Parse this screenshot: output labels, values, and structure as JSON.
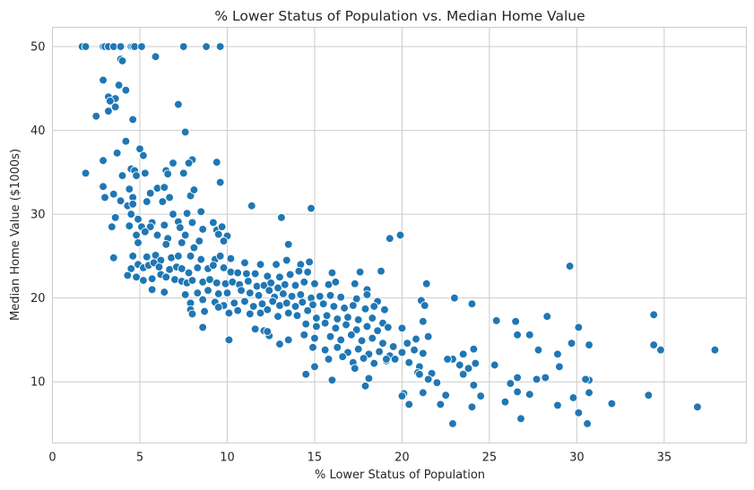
{
  "chart_data": {
    "type": "scatter",
    "title": "% Lower Status of Population vs. Median Home Value",
    "xlabel": "% Lower Status of Population",
    "ylabel": "Median Home Value ($1000s)",
    "xlim": [
      0,
      39.7
    ],
    "ylim": [
      2.7,
      52.3
    ],
    "xticks": [
      0,
      5,
      10,
      15,
      20,
      25,
      30,
      35
    ],
    "yticks": [
      10,
      20,
      30,
      40,
      50
    ],
    "grid": true,
    "marker_color": "#1f77b4",
    "points": [
      [
        1.7,
        50
      ],
      [
        1.9,
        50
      ],
      [
        2.9,
        50
      ],
      [
        3.0,
        50
      ],
      [
        3.2,
        50
      ],
      [
        3.5,
        50
      ],
      [
        3.9,
        50
      ],
      [
        4.5,
        50
      ],
      [
        4.6,
        50
      ],
      [
        4.7,
        50
      ],
      [
        5.1,
        50
      ],
      [
        7.5,
        50
      ],
      [
        8.8,
        50
      ],
      [
        9.6,
        50
      ],
      [
        3.9,
        48.5
      ],
      [
        4.0,
        48.3
      ],
      [
        5.9,
        48.8
      ],
      [
        3.8,
        45.4
      ],
      [
        4.2,
        44.8
      ],
      [
        3.2,
        44.0
      ],
      [
        3.6,
        43.8
      ],
      [
        3.3,
        43.5
      ],
      [
        3.6,
        42.8
      ],
      [
        3.2,
        42.3
      ],
      [
        2.5,
        41.7
      ],
      [
        4.6,
        41.3
      ],
      [
        7.2,
        43.1
      ],
      [
        7.6,
        39.8
      ],
      [
        2.9,
        46.0
      ],
      [
        4.2,
        38.7
      ],
      [
        5.0,
        37.8
      ],
      [
        3.7,
        37.3
      ],
      [
        5.2,
        37.0
      ],
      [
        2.9,
        36.4
      ],
      [
        8.0,
        36.5
      ],
      [
        7.8,
        36.1
      ],
      [
        9.4,
        36.2
      ],
      [
        6.9,
        36.1
      ],
      [
        1.9,
        34.9
      ],
      [
        4.5,
        35.4
      ],
      [
        4.7,
        35.2
      ],
      [
        4.8,
        34.6
      ],
      [
        5.3,
        34.9
      ],
      [
        6.5,
        35.2
      ],
      [
        6.6,
        34.8
      ],
      [
        4.0,
        34.6
      ],
      [
        7.5,
        34.9
      ],
      [
        9.6,
        33.8
      ],
      [
        2.9,
        33.3
      ],
      [
        4.4,
        33.0
      ],
      [
        5.6,
        32.5
      ],
      [
        6.0,
        33.1
      ],
      [
        6.4,
        33.2
      ],
      [
        3.5,
        32.4
      ],
      [
        3.0,
        32.0
      ],
      [
        4.6,
        32.0
      ],
      [
        6.7,
        32.0
      ],
      [
        7.9,
        32.2
      ],
      [
        8.1,
        32.9
      ],
      [
        3.9,
        31.6
      ],
      [
        4.3,
        31.0
      ],
      [
        4.6,
        31.2
      ],
      [
        5.4,
        31.5
      ],
      [
        6.3,
        31.5
      ],
      [
        8.5,
        30.3
      ],
      [
        11.4,
        31.0
      ],
      [
        13.1,
        29.6
      ],
      [
        14.8,
        30.7
      ],
      [
        4.5,
        30.0
      ],
      [
        4.9,
        29.4
      ],
      [
        5.7,
        29.0
      ],
      [
        6.9,
        30.0
      ],
      [
        7.2,
        29.1
      ],
      [
        7.7,
        30.1
      ],
      [
        8.0,
        29.0
      ],
      [
        9.2,
        29.0
      ],
      [
        3.4,
        28.5
      ],
      [
        4.4,
        28.6
      ],
      [
        5.1,
        28.5
      ],
      [
        5.6,
        28.5
      ],
      [
        6.4,
        28.7
      ],
      [
        7.3,
        28.4
      ],
      [
        8.6,
        28.2
      ],
      [
        9.4,
        28.1
      ],
      [
        9.7,
        28.5
      ],
      [
        3.6,
        29.6
      ],
      [
        4.8,
        27.5
      ],
      [
        5.3,
        27.9
      ],
      [
        6.0,
        27.5
      ],
      [
        6.6,
        27.1
      ],
      [
        7.6,
        27.5
      ],
      [
        8.4,
        26.8
      ],
      [
        9.5,
        27.6
      ],
      [
        10.0,
        27.4
      ],
      [
        4.9,
        26.6
      ],
      [
        6.5,
        26.4
      ],
      [
        7.4,
        26.6
      ],
      [
        8.1,
        26.0
      ],
      [
        9.8,
        26.8
      ],
      [
        13.5,
        26.4
      ],
      [
        19.3,
        27.1
      ],
      [
        19.9,
        27.5
      ],
      [
        3.5,
        24.8
      ],
      [
        4.6,
        25.0
      ],
      [
        5.4,
        24.9
      ],
      [
        5.9,
        25.1
      ],
      [
        6.2,
        24.5
      ],
      [
        6.8,
        24.8
      ],
      [
        7.2,
        25.0
      ],
      [
        7.9,
        25.0
      ],
      [
        8.5,
        24.6
      ],
      [
        9.3,
        24.6
      ],
      [
        9.6,
        25.0
      ],
      [
        10.2,
        24.7
      ],
      [
        11.0,
        24.2
      ],
      [
        11.9,
        24.0
      ],
      [
        12.8,
        24.0
      ],
      [
        13.4,
        24.5
      ],
      [
        14.2,
        24.0
      ],
      [
        14.7,
        24.3
      ],
      [
        4.5,
        23.5
      ],
      [
        4.9,
        24.0
      ],
      [
        5.2,
        23.6
      ],
      [
        5.5,
        23.9
      ],
      [
        5.8,
        24.2
      ],
      [
        6.1,
        23.7
      ],
      [
        6.7,
        23.4
      ],
      [
        7.1,
        23.7
      ],
      [
        7.4,
        23.5
      ],
      [
        7.8,
        23.0
      ],
      [
        8.3,
        23.6
      ],
      [
        8.9,
        23.5
      ],
      [
        9.2,
        23.9
      ],
      [
        9.8,
        23.6
      ],
      [
        10.2,
        23.1
      ],
      [
        10.6,
        23.0
      ],
      [
        11.1,
        22.9
      ],
      [
        11.6,
        22.9
      ],
      [
        12.3,
        22.6
      ],
      [
        13.0,
        22.5
      ],
      [
        13.6,
        22.8
      ],
      [
        14.1,
        23.2
      ],
      [
        14.6,
        23.1
      ],
      [
        16.0,
        23.0
      ],
      [
        17.6,
        23.1
      ],
      [
        18.8,
        23.2
      ],
      [
        4.3,
        22.7
      ],
      [
        4.8,
        22.5
      ],
      [
        5.2,
        22.1
      ],
      [
        5.7,
        22.3
      ],
      [
        6.2,
        22.8
      ],
      [
        6.5,
        22.5
      ],
      [
        7.0,
        22.2
      ],
      [
        7.4,
        22.0
      ],
      [
        7.7,
        21.8
      ],
      [
        8.0,
        22.1
      ],
      [
        8.6,
        21.9
      ],
      [
        9.0,
        22.2
      ],
      [
        9.4,
        21.8
      ],
      [
        9.9,
        21.7
      ],
      [
        10.3,
        21.9
      ],
      [
        10.7,
        21.6
      ],
      [
        11.2,
        22.0
      ],
      [
        11.7,
        21.4
      ],
      [
        12.1,
        21.5
      ],
      [
        12.5,
        21.8
      ],
      [
        12.9,
        21.2
      ],
      [
        13.3,
        21.6
      ],
      [
        13.9,
        21.5
      ],
      [
        14.4,
        21.9
      ],
      [
        15.0,
        21.7
      ],
      [
        15.8,
        21.6
      ],
      [
        16.2,
        21.9
      ],
      [
        17.3,
        21.7
      ],
      [
        18.0,
        21.0
      ],
      [
        21.4,
        21.7
      ],
      [
        5.7,
        21.0
      ],
      [
        6.4,
        20.7
      ],
      [
        7.6,
        20.4
      ],
      [
        8.3,
        20.6
      ],
      [
        8.9,
        20.9
      ],
      [
        9.5,
        20.5
      ],
      [
        10.0,
        20.6
      ],
      [
        10.8,
        20.9
      ],
      [
        11.3,
        20.6
      ],
      [
        11.8,
        20.3
      ],
      [
        12.4,
        20.9
      ],
      [
        12.7,
        20.1
      ],
      [
        13.2,
        20.5
      ],
      [
        13.7,
        20.2
      ],
      [
        14.2,
        20.4
      ],
      [
        14.8,
        20.0
      ],
      [
        15.3,
        20.2
      ],
      [
        15.9,
        20.3
      ],
      [
        16.5,
        20.1
      ],
      [
        17.4,
        19.9
      ],
      [
        18.0,
        20.4
      ],
      [
        18.6,
        19.6
      ],
      [
        21.1,
        19.7
      ],
      [
        23.0,
        20.0
      ],
      [
        7.9,
        19.4
      ],
      [
        8.6,
        19.8
      ],
      [
        9.3,
        19.5
      ],
      [
        9.8,
        19.1
      ],
      [
        10.4,
        19.4
      ],
      [
        11.0,
        19.6
      ],
      [
        11.5,
        19.0
      ],
      [
        12.0,
        19.3
      ],
      [
        12.6,
        19.6
      ],
      [
        13.0,
        19.1
      ],
      [
        13.4,
        19.4
      ],
      [
        13.9,
        19.0
      ],
      [
        14.3,
        19.5
      ],
      [
        14.9,
        19.2
      ],
      [
        15.5,
        19.3
      ],
      [
        16.1,
        19.0
      ],
      [
        16.7,
        18.8
      ],
      [
        17.2,
        19.1
      ],
      [
        17.9,
        18.7
      ],
      [
        18.4,
        19.0
      ],
      [
        19.0,
        18.6
      ],
      [
        21.3,
        19.1
      ],
      [
        24.0,
        19.3
      ],
      [
        7.9,
        18.6
      ],
      [
        8.7,
        18.4
      ],
      [
        9.5,
        18.9
      ],
      [
        10.1,
        18.2
      ],
      [
        10.6,
        18.5
      ],
      [
        11.3,
        18.1
      ],
      [
        11.9,
        18.2
      ],
      [
        12.3,
        18.6
      ],
      [
        12.9,
        17.8
      ],
      [
        13.5,
        18.2
      ],
      [
        14.0,
        17.9
      ],
      [
        14.6,
        18.5
      ],
      [
        15.1,
        17.6
      ],
      [
        15.7,
        17.9
      ],
      [
        16.3,
        17.5
      ],
      [
        16.9,
        17.7
      ],
      [
        17.5,
        17.4
      ],
      [
        18.3,
        17.6
      ],
      [
        18.9,
        17.0
      ],
      [
        21.2,
        17.2
      ],
      [
        25.4,
        17.3
      ],
      [
        26.5,
        17.2
      ],
      [
        28.3,
        17.8
      ],
      [
        34.4,
        18.0
      ],
      [
        8.0,
        18.1
      ],
      [
        14.5,
        16.9
      ],
      [
        15.1,
        16.6
      ],
      [
        15.6,
        17.0
      ],
      [
        16.2,
        16.4
      ],
      [
        16.8,
        16.8
      ],
      [
        17.4,
        16.2
      ],
      [
        18.0,
        16.6
      ],
      [
        18.6,
        16.1
      ],
      [
        19.2,
        16.5
      ],
      [
        20.0,
        16.4
      ],
      [
        26.6,
        15.6
      ],
      [
        27.3,
        15.6
      ],
      [
        30.1,
        16.5
      ],
      [
        11.6,
        16.3
      ],
      [
        12.1,
        16.1
      ],
      [
        12.4,
        15.5
      ],
      [
        8.6,
        16.5
      ],
      [
        14.4,
        15.6
      ],
      [
        15.0,
        15.2
      ],
      [
        15.9,
        15.4
      ],
      [
        16.5,
        15.0
      ],
      [
        17.1,
        15.6
      ],
      [
        17.7,
        14.9
      ],
      [
        18.3,
        15.2
      ],
      [
        18.9,
        14.6
      ],
      [
        19.5,
        14.2
      ],
      [
        20.3,
        14.6
      ],
      [
        20.8,
        15.1
      ],
      [
        21.5,
        15.4
      ],
      [
        10.1,
        15.0
      ],
      [
        13.0,
        14.5
      ],
      [
        13.5,
        15.0
      ],
      [
        29.7,
        14.6
      ],
      [
        30.7,
        14.4
      ],
      [
        34.4,
        14.4
      ],
      [
        14.9,
        14.1
      ],
      [
        15.6,
        13.8
      ],
      [
        16.3,
        14.1
      ],
      [
        16.9,
        13.5
      ],
      [
        17.5,
        13.9
      ],
      [
        18.1,
        13.3
      ],
      [
        18.7,
        13.6
      ],
      [
        19.3,
        13.1
      ],
      [
        20.0,
        13.5
      ],
      [
        20.7,
        13.8
      ],
      [
        21.2,
        13.4
      ],
      [
        22.9,
        12.7
      ],
      [
        23.5,
        13.3
      ],
      [
        24.1,
        13.9
      ],
      [
        27.8,
        13.8
      ],
      [
        28.9,
        13.3
      ],
      [
        34.8,
        13.8
      ],
      [
        37.9,
        13.8
      ],
      [
        25.3,
        12.0
      ],
      [
        15.8,
        12.7
      ],
      [
        16.6,
        13.0
      ],
      [
        17.2,
        12.3
      ],
      [
        17.8,
        12.8
      ],
      [
        18.4,
        12.2
      ],
      [
        19.1,
        12.5
      ],
      [
        19.6,
        12.7
      ],
      [
        20.4,
        12.3
      ],
      [
        21.0,
        11.8
      ],
      [
        21.7,
        11.0
      ],
      [
        22.6,
        12.7
      ],
      [
        23.3,
        12.0
      ],
      [
        23.8,
        11.6
      ],
      [
        24.2,
        12.2
      ],
      [
        26.2,
        9.8
      ],
      [
        29.0,
        11.8
      ],
      [
        30.7,
        10.2
      ],
      [
        14.5,
        10.9
      ],
      [
        15.0,
        11.8
      ],
      [
        16.0,
        10.2
      ],
      [
        17.3,
        11.6
      ],
      [
        18.1,
        10.4
      ],
      [
        19.1,
        12.7
      ],
      [
        20.9,
        11.1
      ],
      [
        21.5,
        10.3
      ],
      [
        22.0,
        9.9
      ],
      [
        23.5,
        10.9
      ],
      [
        24.1,
        9.6
      ],
      [
        26.6,
        10.5
      ],
      [
        27.7,
        10.3
      ],
      [
        28.2,
        10.5
      ],
      [
        30.5,
        10.3
      ],
      [
        17.9,
        9.5
      ],
      [
        20.1,
        8.6
      ],
      [
        20.0,
        8.3
      ],
      [
        21.2,
        8.7
      ],
      [
        22.5,
        8.4
      ],
      [
        24.5,
        8.3
      ],
      [
        25.9,
        7.6
      ],
      [
        26.6,
        8.8
      ],
      [
        27.3,
        8.5
      ],
      [
        29.8,
        8.1
      ],
      [
        30.7,
        8.7
      ],
      [
        32.0,
        7.4
      ],
      [
        34.1,
        8.4
      ],
      [
        20.4,
        7.3
      ],
      [
        22.2,
        7.3
      ],
      [
        24.0,
        7.0
      ],
      [
        28.9,
        7.2
      ],
      [
        30.1,
        6.3
      ],
      [
        26.8,
        5.6
      ],
      [
        22.9,
        5.0
      ],
      [
        30.6,
        5.0
      ],
      [
        36.9,
        7.0
      ],
      [
        21.0,
        10.9
      ],
      [
        29.6,
        23.8
      ],
      [
        12.3,
        16.0
      ]
    ]
  }
}
